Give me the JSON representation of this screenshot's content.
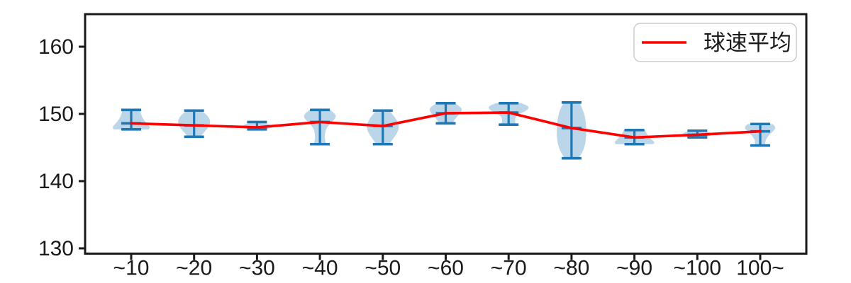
{
  "chart_data": {
    "type": "violin",
    "title": "",
    "xlabel": "",
    "ylabel": "",
    "grid": false,
    "categories": [
      "~10",
      "~20",
      "~30",
      "~40",
      "~50",
      "~60",
      "~70",
      "~80",
      "~90",
      "~100",
      "100~"
    ],
    "y_axis": {
      "ticks": [
        "130",
        "140",
        "150",
        "160"
      ],
      "tick_values": [
        130,
        140,
        150,
        160
      ],
      "range": [
        129.2,
        164.8
      ]
    },
    "violins": [
      {
        "label": "~10",
        "min": 147.7,
        "max": 150.6,
        "mean": 148.6,
        "half_width": 27,
        "width_profile": [
          [
            0,
            0.45
          ],
          [
            0.25,
            0.52
          ],
          [
            0.5,
            0.64
          ],
          [
            0.75,
            0.86
          ],
          [
            0.9,
            1.0
          ],
          [
            1,
            0.92
          ]
        ]
      },
      {
        "label": "~20",
        "min": 146.6,
        "max": 150.5,
        "mean": 148.3,
        "half_width": 23,
        "width_profile": [
          [
            0,
            0.45
          ],
          [
            0.18,
            0.82
          ],
          [
            0.38,
            1.0
          ],
          [
            0.58,
            0.95
          ],
          [
            0.78,
            0.68
          ],
          [
            1,
            0.38
          ]
        ]
      },
      {
        "label": "~30",
        "min": 147.7,
        "max": 148.8,
        "mean": 148.0,
        "half_width": 23,
        "width_profile": [
          [
            0,
            0.32
          ],
          [
            0.3,
            0.7
          ],
          [
            0.6,
            1.0
          ],
          [
            0.82,
            0.9
          ],
          [
            1,
            0.45
          ]
        ]
      },
      {
        "label": "~40",
        "min": 145.5,
        "max": 150.6,
        "mean": 148.8,
        "half_width": 23,
        "width_profile": [
          [
            0,
            0.62
          ],
          [
            0.12,
            0.95
          ],
          [
            0.22,
            1.0
          ],
          [
            0.38,
            0.68
          ],
          [
            0.52,
            0.4
          ],
          [
            0.7,
            0.3
          ],
          [
            0.86,
            0.3
          ],
          [
            1,
            0.38
          ]
        ]
      },
      {
        "label": "~50",
        "min": 145.5,
        "max": 150.5,
        "mean": 148.2,
        "half_width": 23,
        "width_profile": [
          [
            0,
            0.4
          ],
          [
            0.2,
            0.76
          ],
          [
            0.42,
            1.0
          ],
          [
            0.62,
            0.94
          ],
          [
            0.82,
            0.66
          ],
          [
            1,
            0.4
          ]
        ]
      },
      {
        "label": "~60",
        "min": 148.6,
        "max": 151.6,
        "mean": 150.1,
        "half_width": 23,
        "width_profile": [
          [
            0,
            0.55
          ],
          [
            0.2,
            0.95
          ],
          [
            0.38,
            1.0
          ],
          [
            0.6,
            0.78
          ],
          [
            0.8,
            0.55
          ],
          [
            1,
            0.42
          ]
        ]
      },
      {
        "label": "~70",
        "min": 148.4,
        "max": 151.6,
        "mean": 150.2,
        "half_width": 29,
        "width_profile": [
          [
            0,
            0.6
          ],
          [
            0.1,
            0.9
          ],
          [
            0.22,
            1.0
          ],
          [
            0.36,
            0.85
          ],
          [
            0.55,
            0.42
          ],
          [
            0.75,
            0.3
          ],
          [
            0.9,
            0.33
          ],
          [
            1,
            0.36
          ]
        ]
      },
      {
        "label": "~80",
        "min": 143.4,
        "max": 151.7,
        "mean": 147.9,
        "half_width": 21,
        "width_profile": [
          [
            0,
            0.52
          ],
          [
            0.15,
            0.82
          ],
          [
            0.35,
            0.97
          ],
          [
            0.55,
            1.0
          ],
          [
            0.75,
            0.93
          ],
          [
            0.9,
            0.72
          ],
          [
            1,
            0.45
          ]
        ]
      },
      {
        "label": "~90",
        "min": 145.5,
        "max": 147.6,
        "mean": 146.5,
        "half_width": 29,
        "width_profile": [
          [
            0,
            0.52
          ],
          [
            0.35,
            0.62
          ],
          [
            0.65,
            0.82
          ],
          [
            0.88,
            1.0
          ],
          [
            1,
            0.9
          ]
        ]
      },
      {
        "label": "~100",
        "min": 146.5,
        "max": 147.5,
        "mean": 146.9,
        "half_width": 21,
        "width_profile": [
          [
            0,
            0.52
          ],
          [
            0.35,
            0.95
          ],
          [
            0.55,
            1.0
          ],
          [
            0.8,
            0.8
          ],
          [
            1,
            0.45
          ]
        ]
      },
      {
        "label": "100~",
        "min": 145.3,
        "max": 148.5,
        "mean": 147.4,
        "half_width": 23,
        "width_profile": [
          [
            0,
            0.75
          ],
          [
            0.15,
            1.0
          ],
          [
            0.35,
            0.78
          ],
          [
            0.55,
            0.48
          ],
          [
            0.75,
            0.34
          ],
          [
            0.9,
            0.3
          ],
          [
            1,
            0.34
          ]
        ]
      }
    ],
    "series": [
      {
        "name": "球速平均",
        "type": "line",
        "values": [
          148.6,
          148.3,
          148.0,
          148.8,
          148.2,
          150.1,
          150.2,
          147.9,
          146.5,
          146.9,
          147.4
        ]
      }
    ],
    "legend": {
      "label": "球速平均",
      "position": "upper right"
    },
    "colors": {
      "mean_line": "#ff0000",
      "violin_line": "#1f77b4",
      "violin_fill": "#1f77b4",
      "violin_fill_opacity": 0.3,
      "axis": "#1a1a1a",
      "legend_border": "#cccccc",
      "background": "#ffffff"
    }
  }
}
